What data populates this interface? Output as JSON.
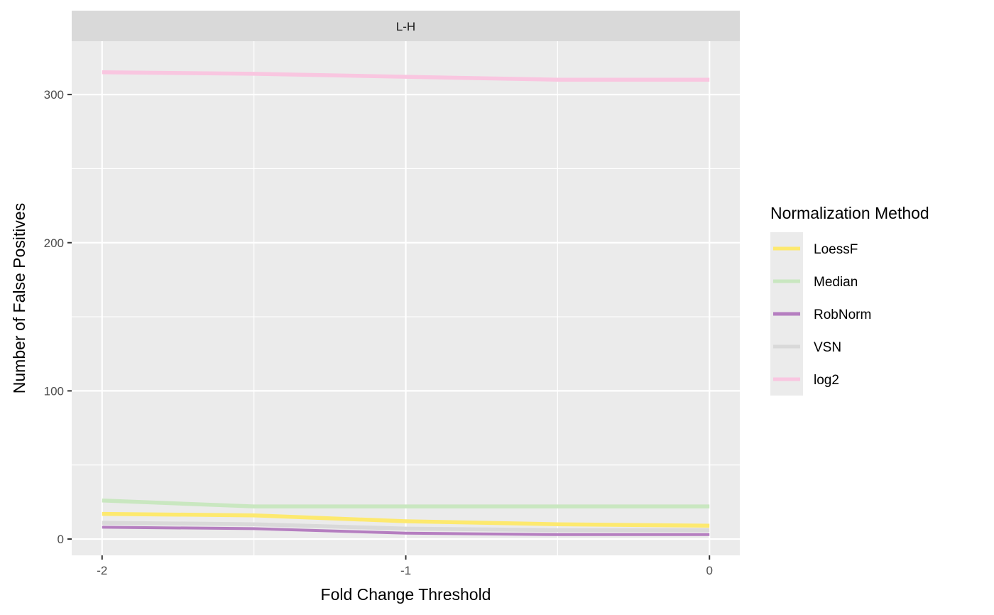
{
  "chart_data": {
    "type": "line",
    "facet": "L-H",
    "xlabel": "Fold Change Threshold",
    "ylabel": "Number of False Positives",
    "x": [
      -2,
      -1.5,
      -1,
      -0.5,
      0
    ],
    "xlim": [
      -2.1,
      0.1
    ],
    "ylim": [
      -11,
      336
    ],
    "x_ticks": [
      -2,
      -1,
      0
    ],
    "y_ticks": [
      0,
      100,
      200,
      300
    ],
    "grid": true,
    "legend": {
      "title": "Normalization Method",
      "position": "right"
    },
    "series": [
      {
        "name": "LoessF",
        "color": "#FDE96E",
        "values": [
          17,
          16,
          12,
          10,
          9
        ]
      },
      {
        "name": "Median",
        "color": "#C9E7C0",
        "values": [
          26,
          22,
          22,
          22,
          22
        ]
      },
      {
        "name": "RobNorm",
        "color": "#B57EC0",
        "values": [
          8,
          7,
          4,
          3,
          3
        ]
      },
      {
        "name": "VSN",
        "color": "#D9D9D9",
        "values": [
          11,
          10,
          7,
          6,
          6
        ]
      },
      {
        "name": "log2",
        "color": "#F9C6E0",
        "values": [
          315,
          314,
          312,
          310,
          310
        ]
      }
    ]
  }
}
